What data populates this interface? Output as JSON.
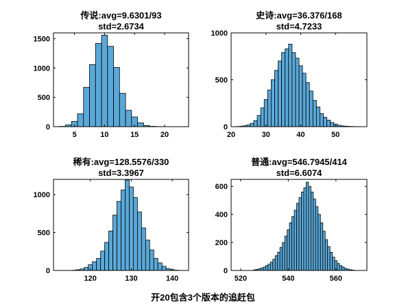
{
  "figure_title": "开20包含3个版本的追赶包",
  "chart_data": [
    {
      "type": "bar",
      "title_line1": "传说:avg=9.6301/93",
      "title_line2": "std=2.6734",
      "xlim": [
        1.5,
        24
      ],
      "ylim": [
        0,
        1600
      ],
      "xticks": [
        5,
        10,
        15,
        20
      ],
      "yticks": [
        0,
        500,
        1000,
        1500
      ],
      "bin_width": 1,
      "bins": [
        [
          3,
          5
        ],
        [
          4,
          30
        ],
        [
          5,
          90
        ],
        [
          6,
          220
        ],
        [
          7,
          670
        ],
        [
          8,
          1060
        ],
        [
          9,
          1420
        ],
        [
          10,
          1560
        ],
        [
          11,
          1370
        ],
        [
          12,
          1010
        ],
        [
          13,
          570
        ],
        [
          14,
          280
        ],
        [
          15,
          165
        ],
        [
          16,
          65
        ],
        [
          17,
          20
        ],
        [
          18,
          6
        ],
        [
          19,
          2
        ]
      ]
    },
    {
      "type": "bar",
      "title_line1": "史诗:avg=36.376/168",
      "title_line2": "std=4.7233",
      "xlim": [
        20,
        59
      ],
      "ylim": [
        0,
        1000
      ],
      "xticks": [
        20,
        30,
        40,
        50
      ],
      "yticks": [
        0,
        500,
        1000
      ],
      "bin_width": 1,
      "bins": [
        [
          22,
          2
        ],
        [
          23,
          5
        ],
        [
          24,
          10
        ],
        [
          25,
          18
        ],
        [
          26,
          35
        ],
        [
          27,
          65
        ],
        [
          28,
          120
        ],
        [
          29,
          200
        ],
        [
          30,
          290
        ],
        [
          31,
          390
        ],
        [
          32,
          500
        ],
        [
          33,
          600
        ],
        [
          34,
          700
        ],
        [
          35,
          790
        ],
        [
          36,
          830
        ],
        [
          37,
          880
        ],
        [
          38,
          790
        ],
        [
          39,
          730
        ],
        [
          40,
          650
        ],
        [
          41,
          570
        ],
        [
          42,
          470
        ],
        [
          43,
          380
        ],
        [
          44,
          280
        ],
        [
          45,
          210
        ],
        [
          46,
          140
        ],
        [
          47,
          100
        ],
        [
          48,
          70
        ],
        [
          49,
          45
        ],
        [
          50,
          28
        ],
        [
          51,
          15
        ],
        [
          52,
          8
        ],
        [
          53,
          5
        ],
        [
          54,
          3
        ],
        [
          55,
          2
        ]
      ]
    },
    {
      "type": "bar",
      "title_line1": "稀有:avg=128.5576/330",
      "title_line2": "std=3.3967",
      "xlim": [
        111,
        144
      ],
      "ylim": [
        0,
        1200
      ],
      "xticks": [
        120,
        130,
        140
      ],
      "yticks": [
        0,
        500,
        1000
      ],
      "bin_width": 1,
      "bins": [
        [
          116,
          3
        ],
        [
          117,
          10
        ],
        [
          118,
          20
        ],
        [
          119,
          40
        ],
        [
          120,
          75
        ],
        [
          121,
          115
        ],
        [
          122,
          160
        ],
        [
          123,
          255
        ],
        [
          124,
          370
        ],
        [
          125,
          520
        ],
        [
          126,
          730
        ],
        [
          127,
          910
        ],
        [
          128,
          1060
        ],
        [
          129,
          1190
        ],
        [
          130,
          1100
        ],
        [
          131,
          960
        ],
        [
          132,
          770
        ],
        [
          133,
          560
        ],
        [
          134,
          400
        ],
        [
          135,
          270
        ],
        [
          136,
          160
        ],
        [
          137,
          100
        ],
        [
          138,
          55
        ],
        [
          139,
          25
        ],
        [
          140,
          10
        ],
        [
          141,
          4
        ]
      ]
    },
    {
      "type": "bar",
      "title_line1": "普通:avg=546.7945/414",
      "title_line2": "std=6.6074",
      "xlim": [
        516,
        573
      ],
      "ylim": [
        0,
        650
      ],
      "xticks": [
        520,
        540,
        560
      ],
      "yticks": [
        0,
        200,
        400,
        600
      ],
      "bin_width": 1,
      "bins": [
        [
          526,
          5
        ],
        [
          527,
          8
        ],
        [
          528,
          12
        ],
        [
          529,
          18
        ],
        [
          530,
          25
        ],
        [
          531,
          35
        ],
        [
          532,
          45
        ],
        [
          533,
          60
        ],
        [
          534,
          80
        ],
        [
          535,
          105
        ],
        [
          536,
          130
        ],
        [
          537,
          165
        ],
        [
          538,
          200
        ],
        [
          539,
          245
        ],
        [
          540,
          290
        ],
        [
          541,
          340
        ],
        [
          542,
          385
        ],
        [
          543,
          430
        ],
        [
          544,
          480
        ],
        [
          545,
          520
        ],
        [
          546,
          560
        ],
        [
          547,
          590
        ],
        [
          548,
          630
        ],
        [
          549,
          600
        ],
        [
          550,
          560
        ],
        [
          551,
          510
        ],
        [
          552,
          455
        ],
        [
          553,
          400
        ],
        [
          554,
          340
        ],
        [
          555,
          280
        ],
        [
          556,
          220
        ],
        [
          557,
          170
        ],
        [
          558,
          130
        ],
        [
          559,
          95
        ],
        [
          560,
          70
        ],
        [
          561,
          50
        ],
        [
          562,
          35
        ],
        [
          563,
          25
        ],
        [
          564,
          15
        ],
        [
          565,
          10
        ],
        [
          566,
          6
        ],
        [
          567,
          3
        ]
      ]
    }
  ]
}
